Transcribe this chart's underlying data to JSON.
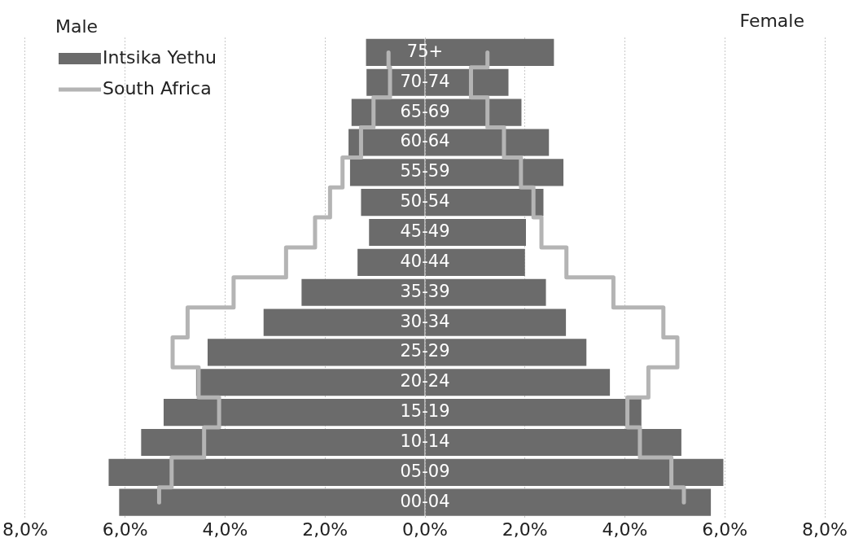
{
  "chart_data": {
    "type": "bar",
    "orientation": "horizontal",
    "stacked": true,
    "categories": [
      "75+",
      "70-74",
      "65-69",
      "60-64",
      "55-59",
      "50-54",
      "45-49",
      "40-44",
      "35-39",
      "30-34",
      "25-29",
      "20-24",
      "15-19",
      "10-14",
      "05-09",
      "00-04"
    ],
    "series": [
      {
        "name": "Intsika Yethu",
        "color": "#6b6b6b",
        "values": [
          -1.18,
          -1.17,
          -1.47,
          -1.53,
          -1.5,
          -1.28,
          -1.12,
          -1.35,
          -2.47,
          -3.23,
          -4.35,
          -4.58,
          -5.23,
          -5.68,
          -6.33,
          -6.12
        ]
      },
      {
        "color": "#6b6b6b",
        "values": [
          2.58,
          1.67,
          1.93,
          2.48,
          2.77,
          2.37,
          2.02,
          2.0,
          2.42,
          2.82,
          3.23,
          3.7,
          4.33,
          5.13,
          5.97,
          5.72
        ]
      },
      {
        "name": "South Africa",
        "type": "step",
        "color": "#b4b4b4",
        "values": [
          -0.73,
          -0.7,
          -1.03,
          -1.28,
          -1.65,
          -1.9,
          -2.2,
          -2.78,
          -3.83,
          -4.75,
          -5.05,
          -4.53,
          -4.12,
          -4.42,
          -5.07,
          -5.32
        ]
      },
      {
        "type": "step",
        "color": "#b4b4b4",
        "values": [
          1.25,
          0.92,
          1.25,
          1.58,
          1.92,
          2.17,
          2.33,
          2.83,
          3.77,
          4.77,
          5.05,
          4.47,
          4.05,
          4.3,
          4.93,
          5.18
        ]
      }
    ],
    "xlim": [
      -8,
      8
    ],
    "xticks": [
      {
        "value": -8,
        "label": "8,0%"
      },
      {
        "value": -6,
        "label": "6,0%"
      },
      {
        "value": -4,
        "label": "4,0%"
      },
      {
        "value": -2,
        "label": "2,0%"
      },
      {
        "value": 0,
        "label": "0,0%"
      },
      {
        "value": 2,
        "label": "2,0%"
      },
      {
        "value": 4,
        "label": "4,0%"
      },
      {
        "value": 6,
        "label": "6,0%"
      },
      {
        "value": 8,
        "label": "8,0%"
      }
    ],
    "grid": "x",
    "legend": "top left",
    "annotations": [
      "Male",
      "Female"
    ]
  }
}
